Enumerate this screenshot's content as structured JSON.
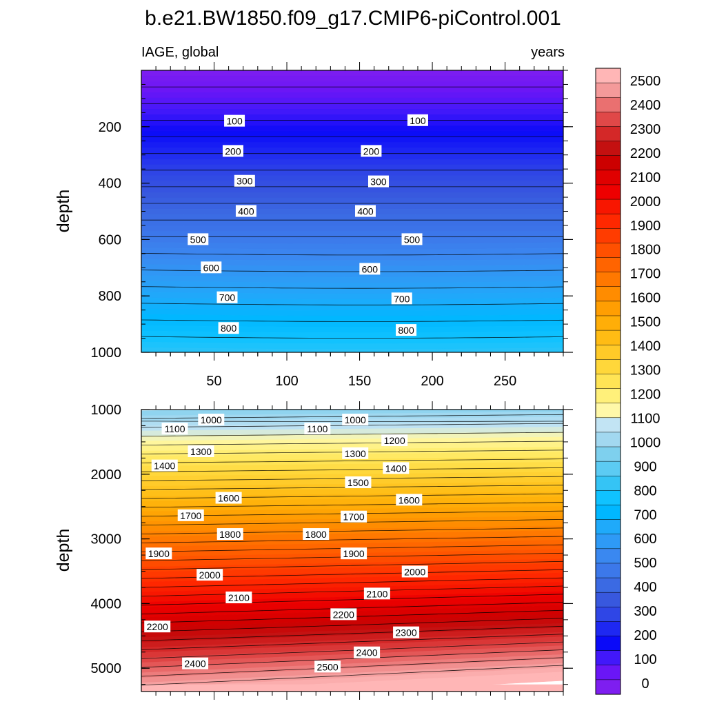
{
  "chart_data": {
    "type": "heatmap",
    "title": "b.e21.BW1850.f09_g17.CMIP6-piControl.001",
    "variable_label": "IAGE, global",
    "units_label": "years",
    "shared_x_tick_labels": [
      "50",
      "100",
      "150",
      "200",
      "250"
    ],
    "colorbar_tick_labels": [
      "0",
      "100",
      "200",
      "300",
      "400",
      "500",
      "600",
      "700",
      "800",
      "900",
      "1000",
      "1100",
      "1200",
      "1300",
      "1400",
      "1500",
      "1600",
      "1700",
      "1800",
      "1900",
      "2000",
      "2100",
      "2200",
      "2300",
      "2400",
      "2500"
    ],
    "colorbar_colors": [
      "#7E1EF0",
      "#6A16F6",
      "#4218FA",
      "#0A0AF8",
      "#1E28F2",
      "#2F46E6",
      "#3858DE",
      "#3B6AE3",
      "#3C78EA",
      "#3A88F0",
      "#2E9AF6",
      "#1FAAFA",
      "#00B7FF",
      "#10C2FF",
      "#35C4F5",
      "#5CCBF3",
      "#7ED0EE",
      "#A2D8F0",
      "#C2E4F4",
      "#FFF8A8",
      "#FFF07A",
      "#FFE455",
      "#FFD73A",
      "#FFCA28",
      "#FFBC14",
      "#FFAE08",
      "#FF9E02",
      "#FF8C00",
      "#FF7800",
      "#FF6400",
      "#FF5000",
      "#FF3C00",
      "#FF2800",
      "#F81600",
      "#EE0000",
      "#E00000",
      "#CC0000",
      "#C41010",
      "#D42828",
      "#E04848",
      "#EA7070",
      "#F49A9A",
      "#FFB6B6"
    ],
    "panels": [
      {
        "name": "upper",
        "ylabel": "depth",
        "ylim": [
          0,
          1000
        ],
        "xlim": [
          0,
          290
        ],
        "y_tick_labels": [
          "200",
          "400",
          "600",
          "800",
          "1000"
        ],
        "y_ticks": [
          200,
          400,
          600,
          800,
          1000
        ],
        "contour_levels": [
          100,
          200,
          300,
          400,
          500,
          600,
          700,
          800
        ],
        "contour_labels": [
          {
            "text": "100",
            "x": 64,
            "depth": 180
          },
          {
            "text": "100",
            "x": 190,
            "depth": 178
          },
          {
            "text": "200",
            "x": 63,
            "depth": 287
          },
          {
            "text": "200",
            "x": 158,
            "depth": 287
          },
          {
            "text": "300",
            "x": 71,
            "depth": 393
          },
          {
            "text": "300",
            "x": 163,
            "depth": 395
          },
          {
            "text": "400",
            "x": 72,
            "depth": 500
          },
          {
            "text": "400",
            "x": 154,
            "depth": 500
          },
          {
            "text": "500",
            "x": 39,
            "depth": 600
          },
          {
            "text": "500",
            "x": 186,
            "depth": 600
          },
          {
            "text": "600",
            "x": 48,
            "depth": 700
          },
          {
            "text": "600",
            "x": 157,
            "depth": 705
          },
          {
            "text": "700",
            "x": 59,
            "depth": 806
          },
          {
            "text": "700",
            "x": 179,
            "depth": 810
          },
          {
            "text": "800",
            "x": 60,
            "depth": 915
          },
          {
            "text": "800",
            "x": 182,
            "depth": 922
          }
        ]
      },
      {
        "name": "lower",
        "ylabel": "depth",
        "ylim": [
          1000,
          5360
        ],
        "xlim": [
          0,
          290
        ],
        "y_tick_labels": [
          "1000",
          "2000",
          "3000",
          "4000",
          "5000"
        ],
        "y_ticks": [
          1000,
          2000,
          3000,
          4000,
          5000
        ],
        "contour_levels": [
          1000,
          1100,
          1200,
          1300,
          1400,
          1500,
          1600,
          1700,
          1800,
          1900,
          2000,
          2100,
          2200,
          2300,
          2400,
          2500
        ],
        "contour_labels": [
          {
            "text": "1000",
            "x": 48,
            "depth": 1160
          },
          {
            "text": "1000",
            "x": 147,
            "depth": 1160
          },
          {
            "text": "1100",
            "x": 23,
            "depth": 1300
          },
          {
            "text": "1100",
            "x": 121,
            "depth": 1300
          },
          {
            "text": "1200",
            "x": 174,
            "depth": 1480
          },
          {
            "text": "1300",
            "x": 41,
            "depth": 1650
          },
          {
            "text": "1300",
            "x": 147,
            "depth": 1680
          },
          {
            "text": "1400",
            "x": 16,
            "depth": 1870
          },
          {
            "text": "1400",
            "x": 175,
            "depth": 1910
          },
          {
            "text": "1500",
            "x": 149,
            "depth": 2130
          },
          {
            "text": "1600",
            "x": 60,
            "depth": 2370
          },
          {
            "text": "1600",
            "x": 184,
            "depth": 2400
          },
          {
            "text": "1700",
            "x": 34,
            "depth": 2640
          },
          {
            "text": "1700",
            "x": 146,
            "depth": 2660
          },
          {
            "text": "1800",
            "x": 61,
            "depth": 2930
          },
          {
            "text": "1800",
            "x": 120,
            "depth": 2930
          },
          {
            "text": "1900",
            "x": 12,
            "depth": 3230
          },
          {
            "text": "1900",
            "x": 146,
            "depth": 3230
          },
          {
            "text": "2000",
            "x": 47,
            "depth": 3560
          },
          {
            "text": "2000",
            "x": 188,
            "depth": 3510
          },
          {
            "text": "2100",
            "x": 67,
            "depth": 3910
          },
          {
            "text": "2100",
            "x": 162,
            "depth": 3850
          },
          {
            "text": "2200",
            "x": 11,
            "depth": 4360
          },
          {
            "text": "2200",
            "x": 139,
            "depth": 4170
          },
          {
            "text": "2300",
            "x": 182,
            "depth": 4450
          },
          {
            "text": "2400",
            "x": 37,
            "depth": 4930
          },
          {
            "text": "2400",
            "x": 155,
            "depth": 4760
          },
          {
            "text": "2500",
            "x": 128,
            "depth": 4980
          }
        ]
      }
    ]
  }
}
